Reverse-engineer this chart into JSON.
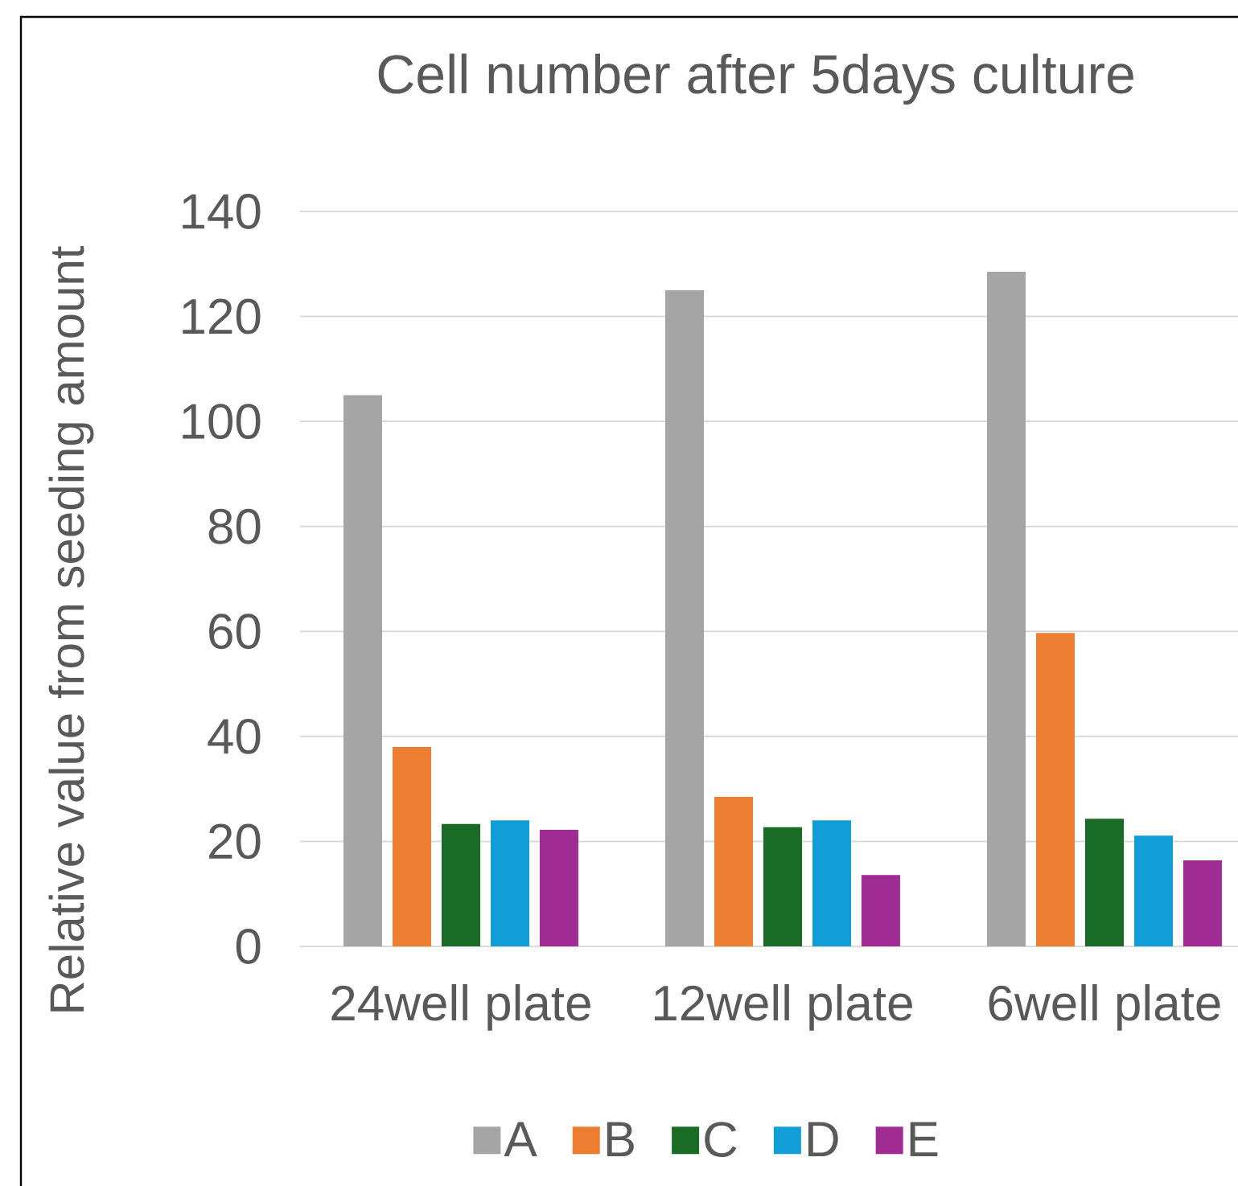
{
  "chart_data": {
    "type": "bar",
    "title": "Cell number after 5days culture",
    "ylabel": "Relative value from seeding amount",
    "categories": [
      "24well plate",
      "12well plate",
      "6well plate"
    ],
    "series": [
      {
        "name": "A",
        "color": "#a5a5a5",
        "values": [
          105,
          125,
          128.5
        ]
      },
      {
        "name": "B",
        "color": "#ed7d31",
        "values": [
          38,
          28.5,
          59.7
        ]
      },
      {
        "name": "C",
        "color": "#1a6b26",
        "values": [
          23.3,
          22.7,
          24.3
        ]
      },
      {
        "name": "D",
        "color": "#119ed7",
        "values": [
          24,
          24,
          21.1
        ]
      },
      {
        "name": "E",
        "color": "#a02b93",
        "values": [
          22.2,
          13.6,
          16.4
        ]
      }
    ],
    "ylim": [
      0,
      140
    ],
    "yticks": [
      0,
      20,
      40,
      60,
      80,
      100,
      120,
      140
    ],
    "grid": "y",
    "legend": "bottom"
  }
}
